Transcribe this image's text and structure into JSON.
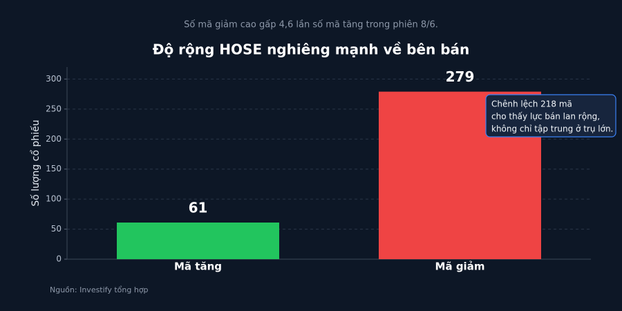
{
  "chart_data": {
    "type": "bar",
    "subtitle": "Số mã giảm cao gấp 4,6 lần số mã tăng trong phiên 8/6.",
    "title": "Độ rộng HOSE nghiêng mạnh về bên bán",
    "y_label": "Số lượng cổ phiếu",
    "categories": [
      "Mã tăng",
      "Mã giảm"
    ],
    "values": [
      61,
      279
    ],
    "colors": [
      "#22c55e",
      "#ef4444"
    ],
    "ylim": [
      0,
      320
    ],
    "yticks": [
      0,
      50,
      100,
      150,
      200,
      250,
      300
    ],
    "grid": true,
    "annotation": [
      "Chênh lệch 218 mã",
      "cho thấy lực bán lan rộng,",
      "không chỉ tập trung ở trụ lớn."
    ],
    "source": "Nguồn: Investify tổng hợp"
  }
}
